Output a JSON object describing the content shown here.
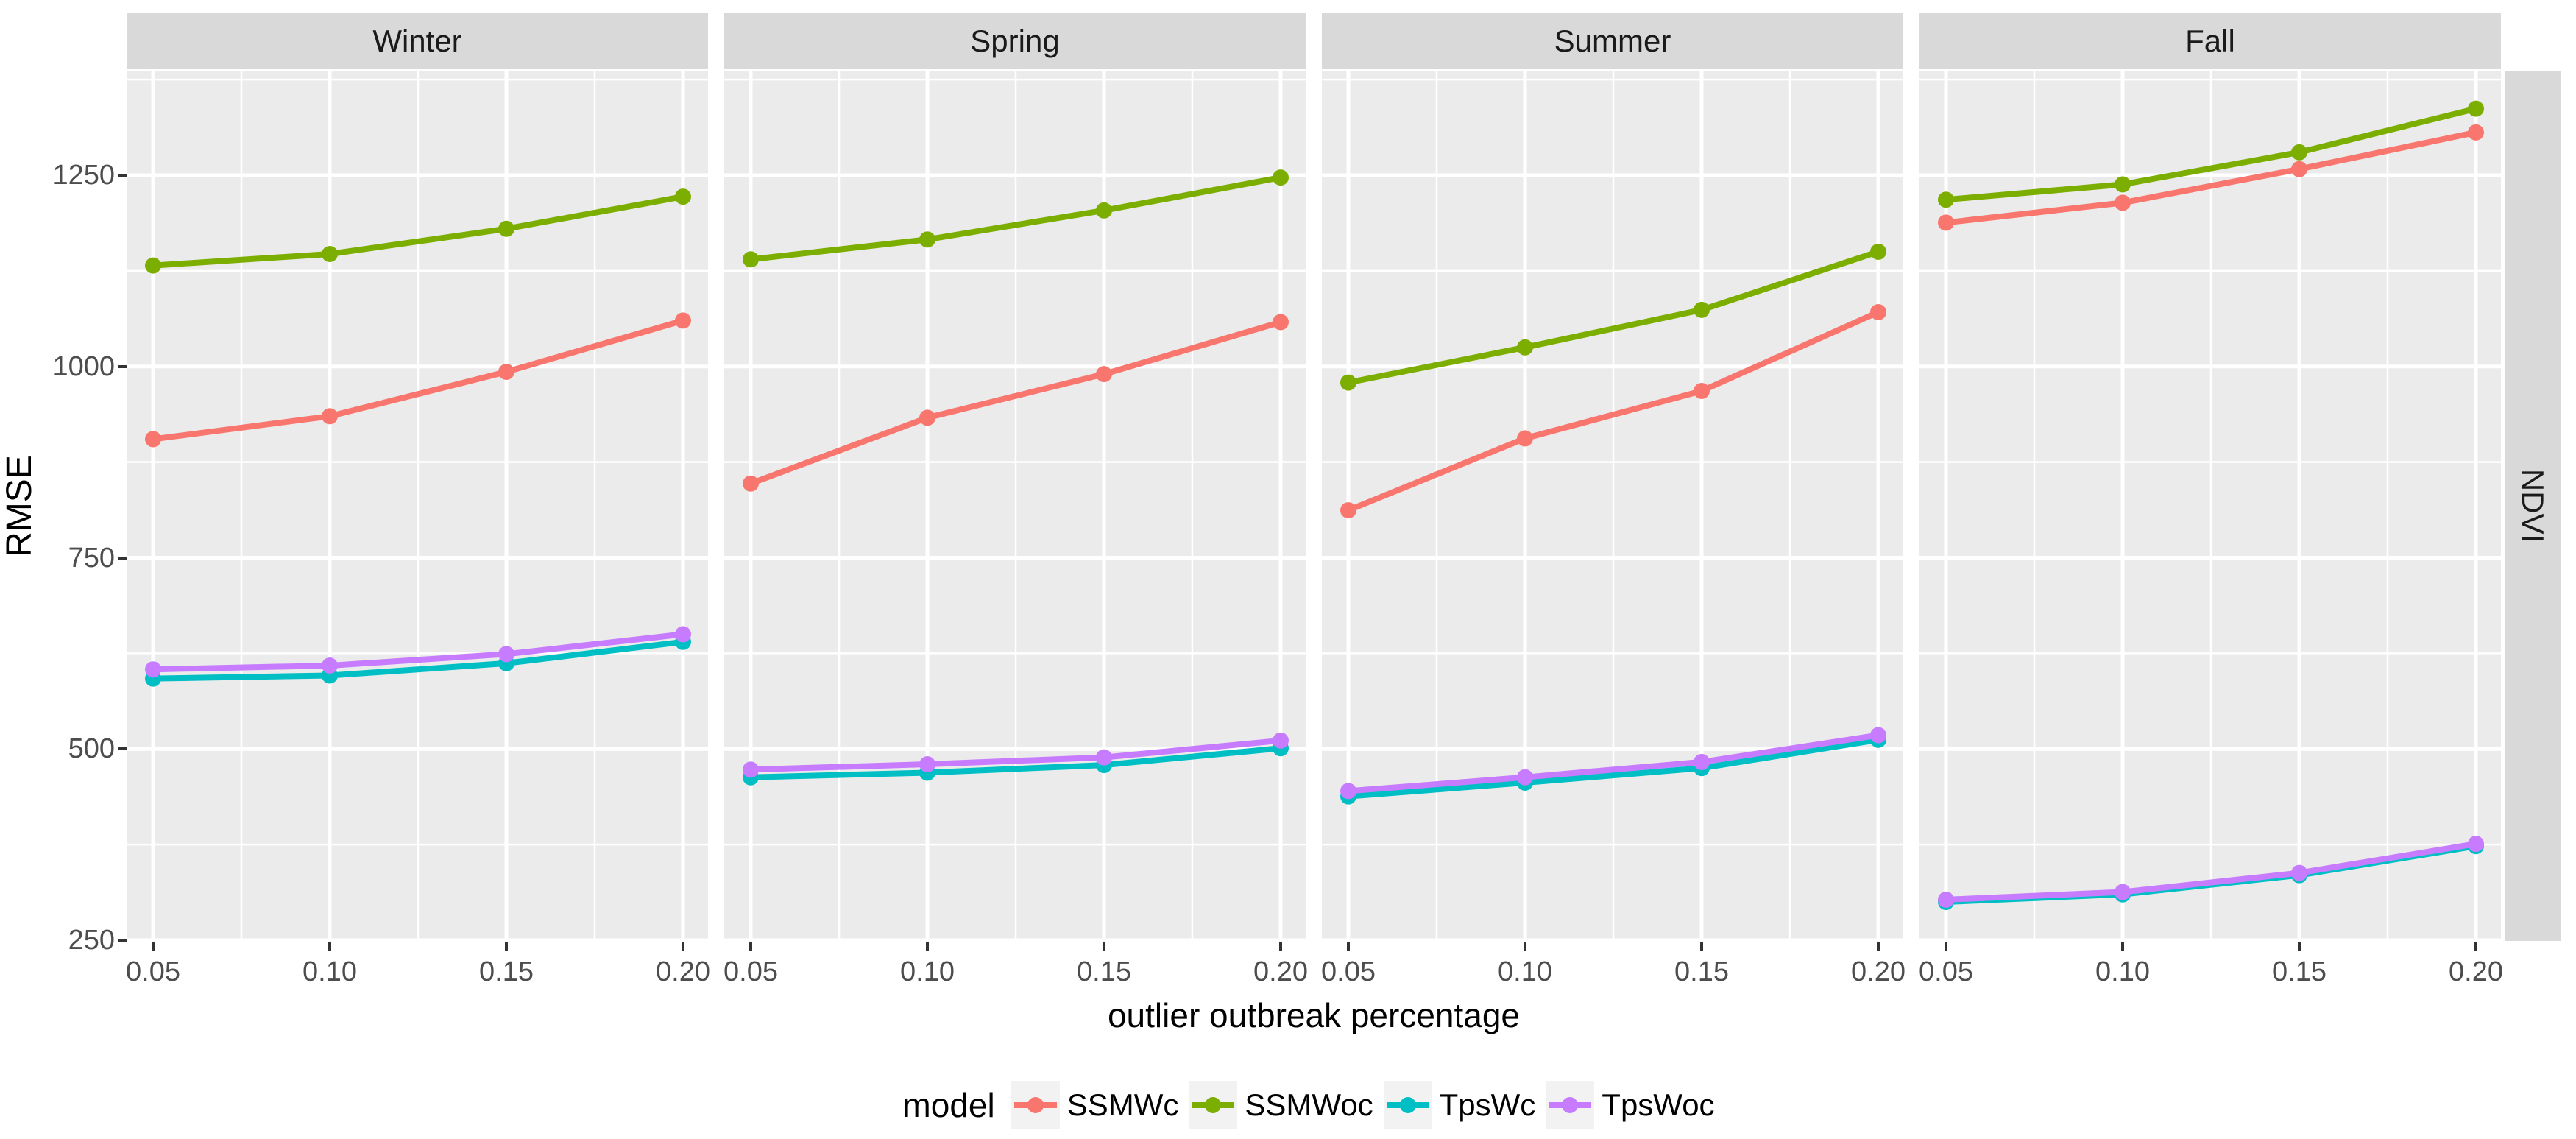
{
  "figure": {
    "y_axis": {
      "title": "RMSE",
      "tick_labels": [
        "250",
        "500",
        "750",
        "1000",
        "1250"
      ],
      "tick_values": [
        250,
        500,
        750,
        1000,
        1250
      ],
      "minor_values": [
        375,
        625,
        875,
        1125,
        1375
      ]
    },
    "x_axis": {
      "title": "outlier outbreak percentage",
      "tick_labels": [
        "0.05",
        "0.10",
        "0.15",
        "0.20"
      ],
      "tick_values": [
        0.05,
        0.1,
        0.15,
        0.2
      ]
    },
    "right_strip_label": "NDVI",
    "colors": {
      "panel_background": "#EBEBEB",
      "strip_background": "#D9D9D9",
      "gridline": "#FFFFFF",
      "tick_text": "#4D4D4D",
      "legend_key_background": "#F2F2F2"
    }
  },
  "chart_data": {
    "type": "line",
    "x": [
      0.05,
      0.1,
      0.15,
      0.2
    ],
    "xlabel": "outlier outbreak percentage",
    "ylabel": "RMSE",
    "ylim": [
      250,
      1387
    ],
    "grid": "on",
    "legend_position": "bottom",
    "facet_row_label": "NDVI",
    "legend": {
      "title": "model",
      "entries": [
        {
          "name": "SSMWc",
          "color": "#F8766D"
        },
        {
          "name": "SSMWoc",
          "color": "#7CAE00"
        },
        {
          "name": "TpsWc",
          "color": "#00BFC4"
        },
        {
          "name": "TpsWoc",
          "color": "#C77CFF"
        }
      ]
    },
    "facets": [
      {
        "label": "Winter",
        "series": [
          {
            "name": "SSMWc",
            "color": "#F8766D",
            "values": [
              905,
              935,
              993,
              1060
            ]
          },
          {
            "name": "SSMWoc",
            "color": "#7CAE00",
            "values": [
              1132,
              1147,
              1180,
              1222
            ]
          },
          {
            "name": "TpsWc",
            "color": "#00BFC4",
            "values": [
              592,
              596,
              612,
              640
            ]
          },
          {
            "name": "TpsWoc",
            "color": "#C77CFF",
            "values": [
              604,
              609,
              624,
              650
            ]
          }
        ]
      },
      {
        "label": "Spring",
        "series": [
          {
            "name": "SSMWc",
            "color": "#F8766D",
            "values": [
              847,
              933,
              990,
              1058
            ]
          },
          {
            "name": "SSMWoc",
            "color": "#7CAE00",
            "values": [
              1140,
              1166,
              1204,
              1247
            ]
          },
          {
            "name": "TpsWc",
            "color": "#00BFC4",
            "values": [
              463,
              469,
              479,
              501
            ]
          },
          {
            "name": "TpsWoc",
            "color": "#C77CFF",
            "values": [
              473,
              480,
              489,
              511
            ]
          }
        ]
      },
      {
        "label": "Summer",
        "series": [
          {
            "name": "SSMWc",
            "color": "#F8766D",
            "values": [
              812,
              906,
              968,
              1071
            ]
          },
          {
            "name": "SSMWoc",
            "color": "#7CAE00",
            "values": [
              979,
              1025,
              1074,
              1150
            ]
          },
          {
            "name": "TpsWc",
            "color": "#00BFC4",
            "values": [
              438,
              456,
              475,
              512
            ]
          },
          {
            "name": "TpsWoc",
            "color": "#C77CFF",
            "values": [
              445,
              463,
              483,
              518
            ]
          }
        ]
      },
      {
        "label": "Fall",
        "series": [
          {
            "name": "SSMWc",
            "color": "#F8766D",
            "values": [
              1188,
              1214,
              1258,
              1306
            ]
          },
          {
            "name": "SSMWoc",
            "color": "#7CAE00",
            "values": [
              1218,
              1238,
              1280,
              1337
            ]
          },
          {
            "name": "TpsWc",
            "color": "#00BFC4",
            "values": [
              300,
              310,
              335,
              373
            ]
          },
          {
            "name": "TpsWoc",
            "color": "#C77CFF",
            "values": [
              303,
              313,
              338,
              376
            ]
          }
        ]
      }
    ]
  }
}
